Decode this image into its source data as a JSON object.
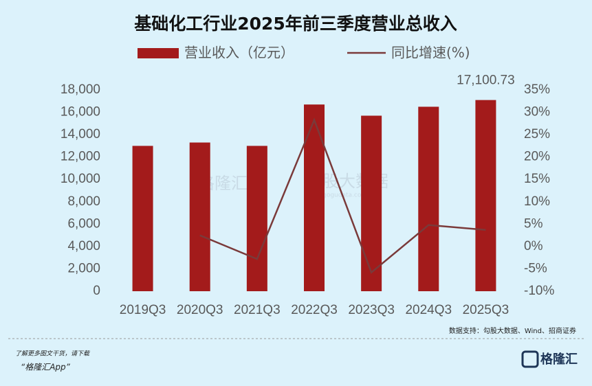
{
  "chart_data": {
    "type": "bar_line",
    "title": "基础化工行业2025年前三季度营业总收入",
    "categories": [
      "2019Q3",
      "2020Q3",
      "2021Q3",
      "2022Q3",
      "2023Q3",
      "2024Q3",
      "2025Q3"
    ],
    "series": [
      {
        "name": "营业收入（亿元）",
        "type": "bar",
        "color": "#a31b1b",
        "values": [
          13000,
          13300,
          13000,
          16700,
          15700,
          16500,
          17100.73
        ],
        "value_labels": [
          null,
          null,
          null,
          null,
          null,
          null,
          "17,100.73"
        ]
      },
      {
        "name": "同比增速(%)",
        "type": "line",
        "axis": "y2",
        "color": "#7a3a3a",
        "values": [
          null,
          2.5,
          -2.8,
          28.3,
          -5.8,
          4.8,
          3.7
        ]
      }
    ],
    "ylim": [
      0,
      18000
    ],
    "yticks": [
      0,
      {
        "value": 2000,
        "label": "2,000"
      },
      {
        "value": 4000,
        "label": "4,000"
      },
      {
        "value": 6000,
        "label": "6,000"
      },
      {
        "value": 8000,
        "label": "8,000"
      },
      {
        "value": 10000,
        "label": "10,000"
      },
      {
        "value": 12000,
        "label": "12,000"
      },
      {
        "value": 14000,
        "label": "14,000"
      },
      {
        "value": 16000,
        "label": "16,000"
      },
      {
        "value": 18000,
        "label": "18,000"
      }
    ],
    "y2lim": [
      -10,
      35
    ],
    "y2ticks": [
      {
        "value": -10,
        "label": "-10%"
      },
      {
        "value": -5,
        "label": "-5%"
      },
      {
        "value": 0,
        "label": "0%"
      },
      {
        "value": 5,
        "label": "5%"
      },
      {
        "value": 10,
        "label": "10%"
      },
      {
        "value": 15,
        "label": "15%"
      },
      {
        "value": 20,
        "label": "20%"
      },
      {
        "value": 25,
        "label": "25%"
      },
      {
        "value": 30,
        "label": "30%"
      },
      {
        "value": 35,
        "label": "35%"
      }
    ],
    "grid": false,
    "legend": "top",
    "source": "数据支持：勾股大数据、Wind、招商证券"
  },
  "watermark": {
    "brand": "格隆汇",
    "product": "勾股大数据",
    "url": "www.gogudata.com"
  },
  "footer": {
    "promo": "了解更多图文干货，请下载",
    "app": "“格隆汇App”",
    "logo": "格隆汇"
  }
}
